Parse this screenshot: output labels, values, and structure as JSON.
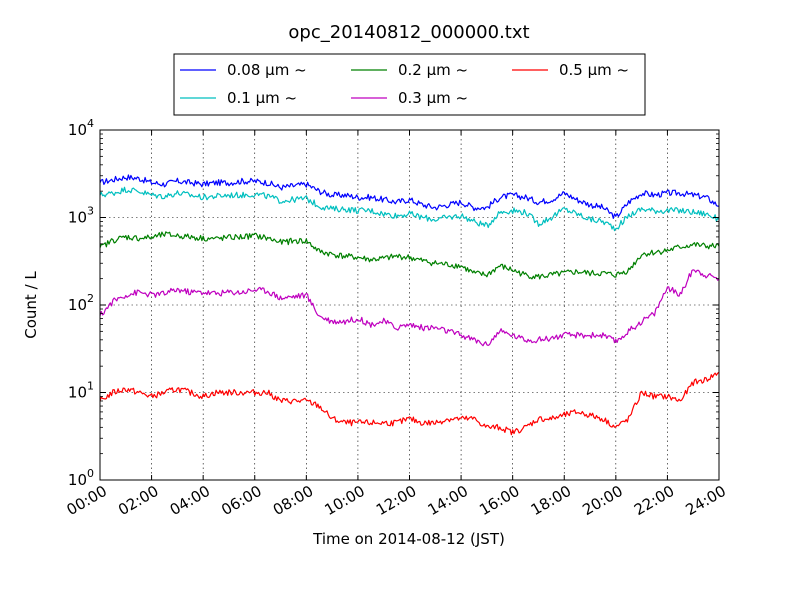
{
  "chart_data": {
    "type": "line",
    "title": "opc_20140812_000000.txt",
    "xlabel": "Time on 2014-08-12 (JST)",
    "ylabel": "Count / L",
    "yscale": "log",
    "xlim_hours": [
      0,
      24
    ],
    "ylim": [
      1,
      10000
    ],
    "grid": true,
    "legend_position": "top",
    "x_tick_labels": [
      "00:00",
      "02:00",
      "04:00",
      "06:00",
      "08:00",
      "10:00",
      "12:00",
      "14:00",
      "16:00",
      "18:00",
      "20:00",
      "22:00",
      "24:00"
    ],
    "y_tick_labels": [
      {
        "base": "10",
        "exp": "0"
      },
      {
        "base": "10",
        "exp": "1"
      },
      {
        "base": "10",
        "exp": "2"
      },
      {
        "base": "10",
        "exp": "3"
      },
      {
        "base": "10",
        "exp": "4"
      }
    ],
    "series_hours": [
      0,
      0.5,
      1,
      1.5,
      2,
      2.5,
      3,
      3.5,
      4,
      4.5,
      5,
      5.5,
      6,
      6.5,
      7,
      7.5,
      8,
      8.5,
      9,
      9.5,
      10,
      10.5,
      11,
      11.5,
      12,
      12.5,
      13,
      13.5,
      14,
      14.5,
      15,
      15.5,
      16,
      16.5,
      17,
      17.5,
      18,
      18.5,
      19,
      19.5,
      20,
      20.5,
      21,
      21.5,
      22,
      22.5,
      23,
      23.5,
      24
    ],
    "series": [
      {
        "name": "0.08 μm ~",
        "color": "#0000ff",
        "values": [
          2500,
          2700,
          2900,
          2800,
          2500,
          2400,
          2600,
          2500,
          2400,
          2500,
          2500,
          2600,
          2600,
          2500,
          2200,
          2300,
          2400,
          2000,
          1800,
          1800,
          1700,
          1700,
          1600,
          1500,
          1600,
          1400,
          1300,
          1400,
          1500,
          1300,
          1300,
          1700,
          1800,
          1700,
          1500,
          1600,
          1900,
          1600,
          1400,
          1300,
          1000,
          1500,
          1900,
          1800,
          1900,
          1900,
          1800,
          1700,
          1350
        ]
      },
      {
        "name": "0.1 μm ~",
        "color": "#00bfbf",
        "values": [
          1800,
          1900,
          2100,
          2000,
          1800,
          1750,
          1900,
          1800,
          1700,
          1750,
          1800,
          1800,
          1850,
          1750,
          1550,
          1600,
          1650,
          1350,
          1250,
          1250,
          1200,
          1200,
          1100,
          1050,
          1100,
          1000,
          950,
          1000,
          1050,
          900,
          800,
          1150,
          1200,
          1150,
          850,
          1000,
          1250,
          1100,
          950,
          900,
          750,
          1050,
          1250,
          1200,
          1200,
          1200,
          1150,
          1100,
          950
        ]
      },
      {
        "name": "0.2 μm ~",
        "color": "#008000",
        "values": [
          450,
          550,
          600,
          580,
          590,
          640,
          620,
          600,
          580,
          570,
          590,
          600,
          620,
          580,
          520,
          540,
          540,
          410,
          380,
          360,
          350,
          330,
          340,
          360,
          350,
          320,
          300,
          290,
          280,
          230,
          220,
          280,
          250,
          220,
          210,
          220,
          230,
          240,
          230,
          230,
          220,
          250,
          380,
          400,
          420,
          460,
          490,
          470,
          470
        ]
      },
      {
        "name": "0.3 μm ~",
        "color": "#bf00bf",
        "values": [
          75,
          110,
          130,
          140,
          130,
          135,
          150,
          140,
          140,
          135,
          140,
          140,
          150,
          145,
          120,
          125,
          130,
          75,
          65,
          65,
          70,
          60,
          65,
          55,
          60,
          55,
          55,
          50,
          45,
          40,
          35,
          50,
          45,
          40,
          40,
          42,
          45,
          45,
          45,
          45,
          38,
          50,
          65,
          80,
          160,
          130,
          260,
          220,
          200
        ]
      },
      {
        "name": "0.5 μm ~",
        "color": "#ff0000",
        "values": [
          8,
          10,
          11,
          10,
          9,
          10,
          11,
          10,
          9,
          10,
          10,
          10,
          10,
          10,
          8,
          8,
          8,
          7,
          5,
          4.5,
          4.5,
          4.5,
          4.5,
          4.5,
          5,
          4.5,
          4.5,
          5,
          5,
          5,
          4,
          4,
          3.5,
          4,
          5,
          5,
          5.5,
          6,
          5.5,
          5,
          4,
          5,
          10,
          9,
          9,
          8,
          13,
          14,
          17
        ]
      }
    ]
  }
}
